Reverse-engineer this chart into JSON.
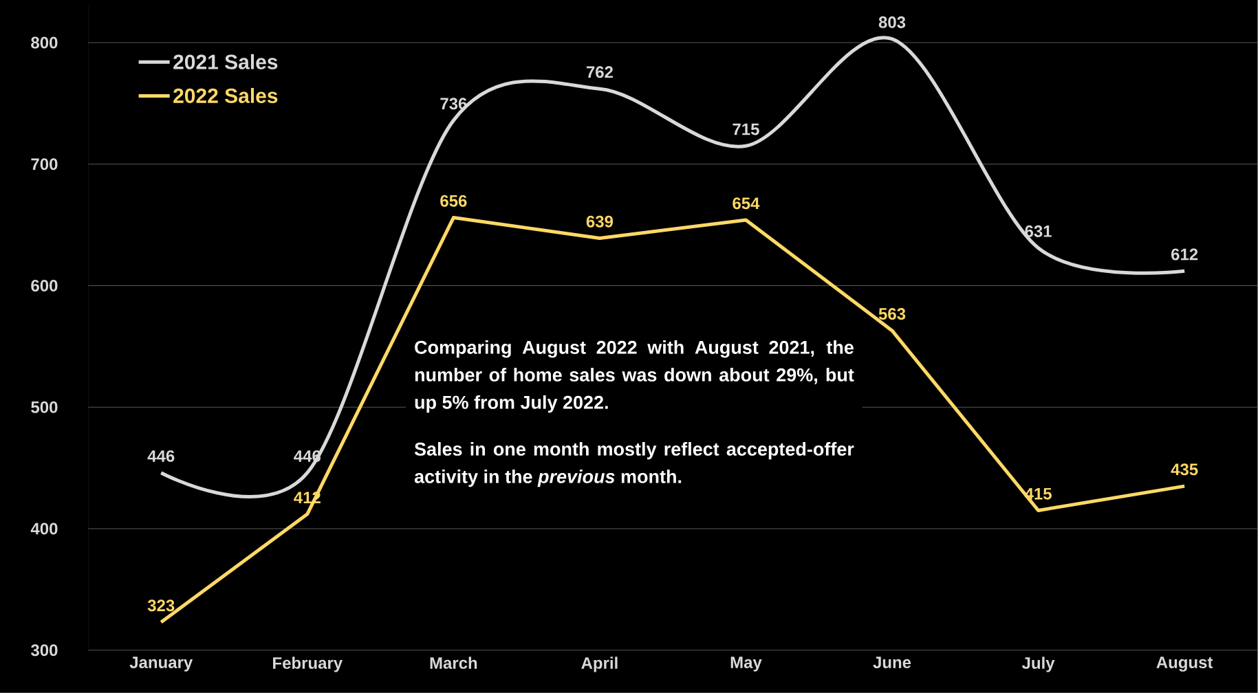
{
  "chart_data": {
    "type": "line",
    "categories": [
      "January",
      "February",
      "March",
      "April",
      "May",
      "June",
      "July",
      "August"
    ],
    "series": [
      {
        "name": "2021 Sales",
        "color": "#d9d9d9",
        "values": [
          446,
          446,
          736,
          762,
          715,
          803,
          631,
          612
        ]
      },
      {
        "name": "2022 Sales",
        "color": "#ffd966",
        "values": [
          323,
          412,
          656,
          639,
          654,
          563,
          415,
          435
        ]
      }
    ],
    "ylim": [
      300,
      830
    ],
    "yticks": [
      300,
      400,
      500,
      600,
      700,
      800
    ],
    "grid": "y",
    "legend": "top left",
    "data_labels": true,
    "line_style": "solid",
    "annotations": [
      "Comparing August 2022 with August 2021, the number of home sales was down about 29%, but up 5% from July 2022.",
      "Sales in one month mostly reflect accepted-offer activity in the *previous* month."
    ]
  }
}
